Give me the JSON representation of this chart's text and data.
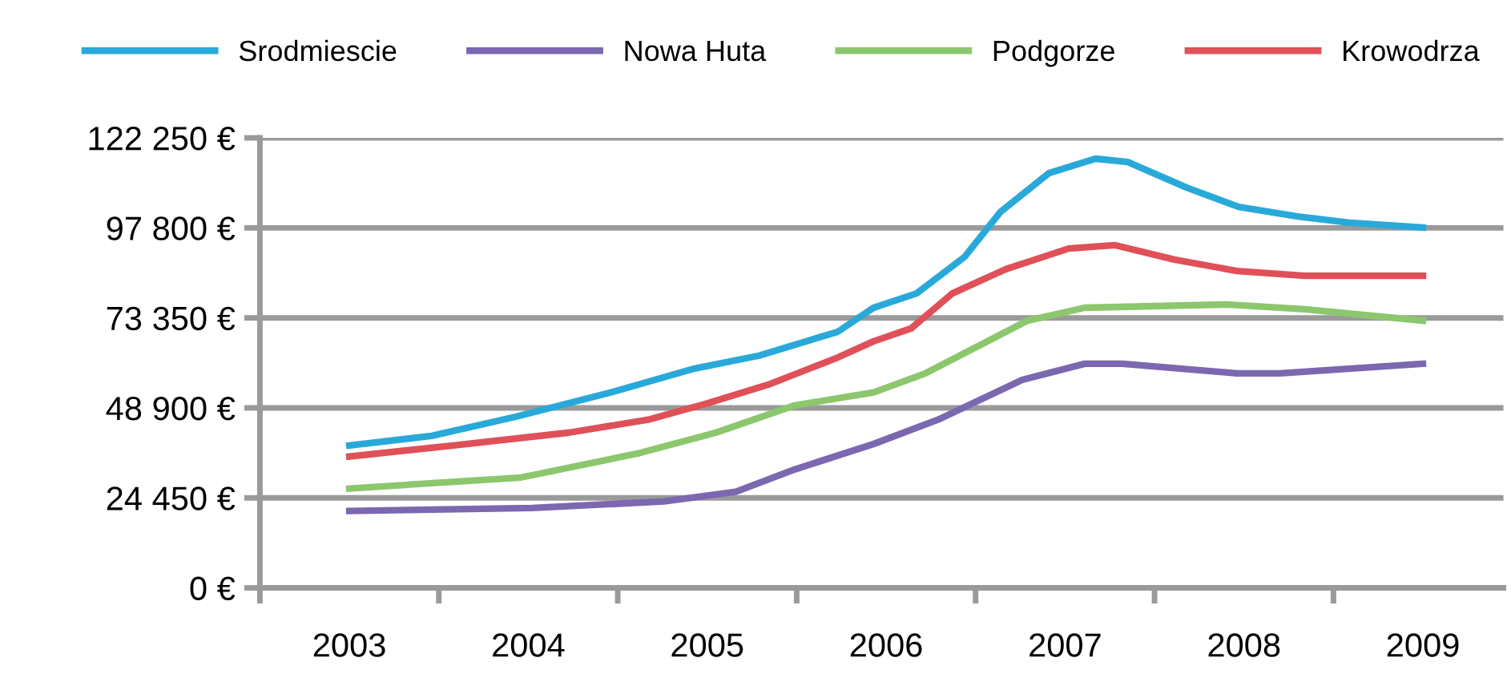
{
  "chart_data": {
    "type": "line",
    "xlim": [
      2002.5,
      2009.45
    ],
    "xticks": [
      {
        "value": 2003,
        "label": "2003"
      },
      {
        "value": 2004,
        "label": "2004"
      },
      {
        "value": 2005,
        "label": "2005"
      },
      {
        "value": 2006,
        "label": "2006"
      },
      {
        "value": 2007,
        "label": "2007"
      },
      {
        "value": 2008,
        "label": "2008"
      },
      {
        "value": 2009,
        "label": "2009"
      },
      {
        "value": 2002.5,
        "label": null
      },
      {
        "value": 2003.5,
        "label": null
      },
      {
        "value": 2004.5,
        "label": null
      },
      {
        "value": 2005.5,
        "label": null
      },
      {
        "value": 2006.5,
        "label": null
      },
      {
        "value": 2007.5,
        "label": null
      },
      {
        "value": 2008.5,
        "label": null
      }
    ],
    "ylim": [
      0,
      122250
    ],
    "yticks": [
      {
        "value": 0,
        "label": "0 €"
      },
      {
        "value": 24450,
        "label": "24 450 €"
      },
      {
        "value": 48900,
        "label": "48 900 €"
      },
      {
        "value": 73350,
        "label": "73 350 €"
      },
      {
        "value": 97800,
        "label": "97 800 €"
      },
      {
        "value": 122250,
        "label": "122 250 €"
      }
    ],
    "grid": "y",
    "legend": "top",
    "marker": "none",
    "line_style": "solid",
    "series": [
      {
        "name": "Srodmiescie",
        "color": "#29a9d9",
        "x": [
          2003.0,
          2003.46,
          2003.93,
          2004.46,
          2004.93,
          2005.29,
          2005.73,
          2005.93,
          2006.17,
          2006.44,
          2006.64,
          2006.91,
          2007.17,
          2007.35,
          2007.68,
          2007.97,
          2008.3,
          2008.59,
          2009.0
        ],
        "values": [
          38700,
          41300,
          46500,
          53100,
          59600,
          63100,
          69600,
          76100,
          80000,
          90000,
          102200,
          112700,
          116600,
          115700,
          108750,
          103500,
          100900,
          99200,
          97900
        ]
      },
      {
        "name": "Nowa Huta",
        "color": "#7b68b0",
        "x": [
          2003.0,
          2004.02,
          2004.76,
          2005.16,
          2005.49,
          2005.93,
          2006.29,
          2006.76,
          2007.11,
          2007.32,
          2007.96,
          2008.2,
          2009.0
        ],
        "values": [
          20900,
          21700,
          23500,
          26100,
          32200,
          39100,
          45700,
          56500,
          60900,
          60900,
          58300,
          58300,
          60900
        ]
      },
      {
        "name": "Podgorze",
        "color": "#8cc76e",
        "x": [
          2003.0,
          2003.96,
          2004.61,
          2005.05,
          2005.49,
          2005.93,
          2006.22,
          2006.79,
          2007.11,
          2007.9,
          2008.34,
          2009.0
        ],
        "values": [
          27000,
          30000,
          36500,
          42200,
          49600,
          53100,
          58300,
          72600,
          76100,
          77000,
          75700,
          72600
        ]
      },
      {
        "name": "Krowodrza",
        "color": "#e05058",
        "x": [
          2003.0,
          2003.58,
          2004.23,
          2004.67,
          2004.99,
          2005.34,
          2005.73,
          2005.93,
          2006.14,
          2006.37,
          2006.67,
          2007.02,
          2007.28,
          2007.61,
          2007.96,
          2008.34,
          2009.0
        ],
        "values": [
          35700,
          38700,
          42200,
          45700,
          50000,
          55200,
          62600,
          67000,
          70500,
          80000,
          86600,
          92200,
          93100,
          89200,
          86100,
          84800,
          84800
        ]
      }
    ]
  }
}
